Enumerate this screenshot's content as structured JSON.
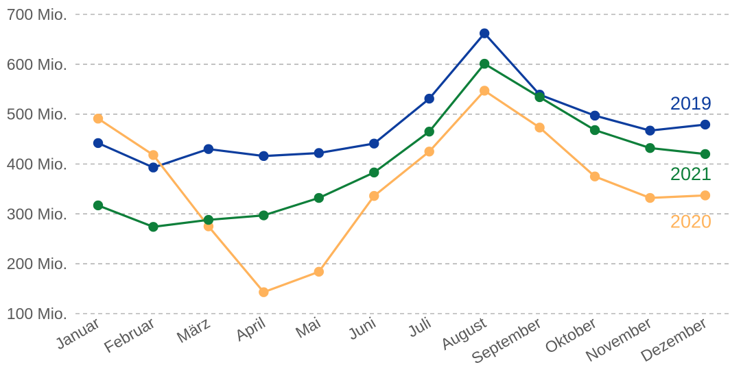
{
  "chart_data": {
    "type": "line",
    "categories": [
      "Januar",
      "Februar",
      "März",
      "April",
      "Mai",
      "Juni",
      "Juli",
      "August",
      "September",
      "Oktober",
      "November",
      "Dezember"
    ],
    "y_tick_labels": [
      "100 Mio.",
      "200 Mio.",
      "300 Mio.",
      "400 Mio.",
      "500 Mio.",
      "600 Mio.",
      "700 Mio."
    ],
    "y_ticks": [
      100,
      200,
      300,
      400,
      500,
      600,
      700
    ],
    "ylim": [
      100,
      700
    ],
    "grid": true,
    "series": [
      {
        "name": "2019",
        "color": "#0d3d9e",
        "values": [
          442,
          393,
          430,
          416,
          422,
          441,
          531,
          662,
          539,
          497,
          467,
          479
        ]
      },
      {
        "name": "2020",
        "color": "#ffb35c",
        "values": [
          491,
          418,
          275,
          143,
          184,
          336,
          425,
          547,
          473,
          375,
          332,
          337
        ]
      },
      {
        "name": "2021",
        "color": "#0e7f3a",
        "values": [
          317,
          274,
          288,
          297,
          332,
          383,
          465,
          601,
          534,
          468,
          432,
          420
        ]
      }
    ]
  }
}
